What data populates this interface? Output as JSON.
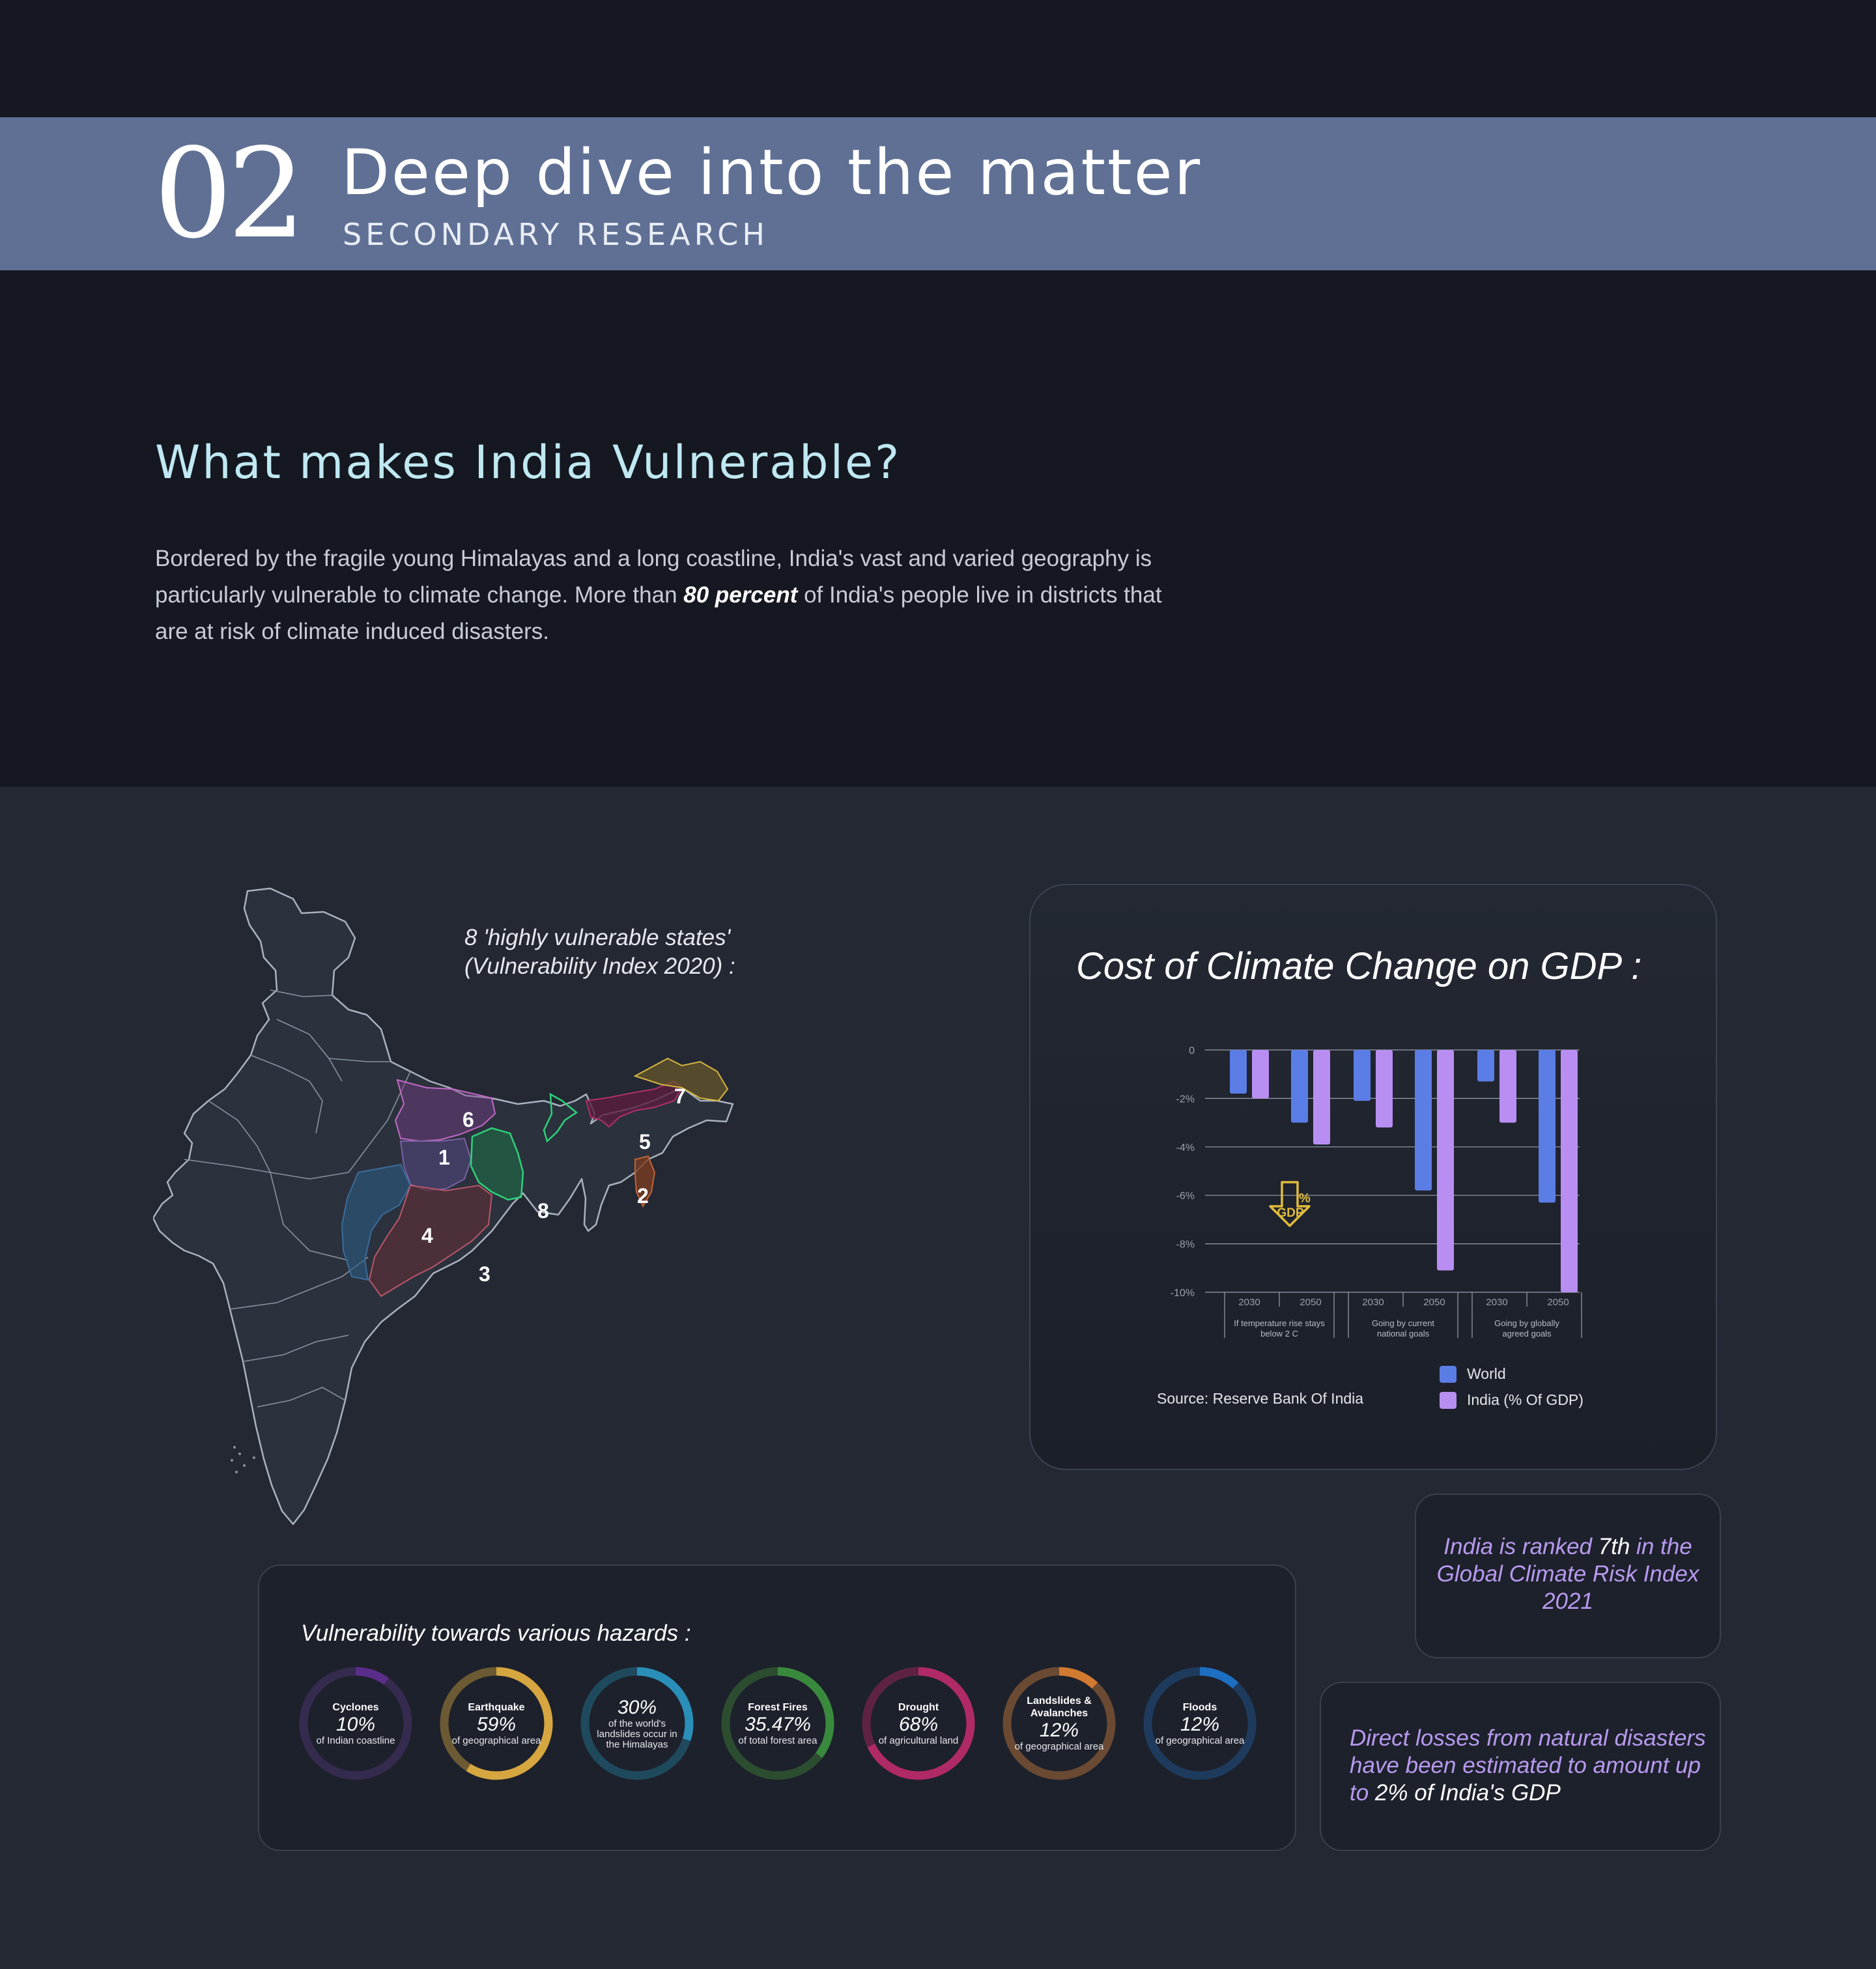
{
  "header": {
    "section_number": "02",
    "title": "Deep dive into the matter",
    "subtitle": "SECONDARY RESEARCH"
  },
  "intro": {
    "heading": "What makes India Vulnerable?",
    "text_before": "Bordered by the fragile young Himalayas and a long coastline, India's vast and varied geography is particularly vulnerable to climate change. More than ",
    "text_bold": "80 percent",
    "text_after": " of India's people live in districts that are at risk of climate induced disasters."
  },
  "map": {
    "caption_line1": "8 'highly vulnerable states'",
    "caption_line2": "(Vulnerability Index 2020) :",
    "states": [
      {
        "number": "1",
        "color": "#7b5fa6"
      },
      {
        "number": "2",
        "color": "#c0643a"
      },
      {
        "number": "3",
        "color": "#b8576a"
      },
      {
        "number": "4",
        "color": "#3b6d9a"
      },
      {
        "number": "5",
        "color": "#b0306a"
      },
      {
        "number": "6",
        "color": "#c06ac4"
      },
      {
        "number": "7",
        "color": "#d6b640"
      },
      {
        "number": "8",
        "color": "#2fd17a"
      }
    ]
  },
  "gdp": {
    "title": "Cost of Climate Change on GDP :",
    "source": "Source: Reserve Bank Of India",
    "icon_top": "%",
    "icon_label": "GDP",
    "legend": [
      {
        "label": "World",
        "color": "#5b7de6"
      },
      {
        "label": "India (% Of GDP)",
        "color": "#b98ef2"
      }
    ],
    "chart_data": {
      "type": "bar",
      "categories": [
        "2030",
        "2050",
        "2030",
        "2050",
        "2030",
        "2050"
      ],
      "groups": [
        "If temperature rise stays below 2 C",
        "Going by current national goals",
        "Going by globally agreed goals"
      ],
      "series": [
        {
          "name": "World",
          "values": [
            -1.8,
            -3.0,
            -2.1,
            -5.8,
            -1.3,
            -6.3
          ]
        },
        {
          "name": "India (% Of GDP)",
          "values": [
            -2.0,
            -3.9,
            -3.2,
            -9.1,
            -3.0,
            -10.0
          ]
        }
      ],
      "yticks": [
        "0",
        "-2%",
        "-4%",
        "-6%",
        "-8%",
        "-10%"
      ],
      "ylim": [
        -10,
        0
      ],
      "grid": true,
      "legend_position": "bottom-right"
    }
  },
  "rank": {
    "pre": "India is ranked ",
    "highlight": "7th",
    "post": " in the Global Climate Risk Index 2021"
  },
  "losses": {
    "pre": "Direct losses from natural disasters have been estimated to amount up to ",
    "highlight": "2% of India's GDP"
  },
  "hazards": {
    "title": "Vulnerability towards various hazards :",
    "items": [
      {
        "name": "Cyclones",
        "value": "10%",
        "desc": "of Indian coastline",
        "percent": 10,
        "color": "#5b2d8a",
        "track": "#352b4f"
      },
      {
        "name": "Earthquake",
        "value": "59%",
        "desc": "of geographical area",
        "percent": 59,
        "color": "#d6a640",
        "track": "#6b5a33"
      },
      {
        "name": "",
        "value": "30%",
        "desc": "of the world's landslides occur in the Himalayas",
        "percent": 30,
        "color": "#2a8fb8",
        "track": "#1f4a5e"
      },
      {
        "name": "Forest Fires",
        "value": "35.47%",
        "desc": "of total forest area",
        "percent": 35.47,
        "color": "#3a8a3e",
        "track": "#2c4d30"
      },
      {
        "name": "Drought",
        "value": "68%",
        "desc": "of agricultural land",
        "percent": 68,
        "color": "#b02a68",
        "track": "#5e2342"
      },
      {
        "name": "Landslides & Avalanches",
        "value": "12%",
        "desc": "of geographical area",
        "percent": 12,
        "color": "#d27a32",
        "track": "#6b4a33"
      },
      {
        "name": "Floods",
        "value": "12%",
        "desc": "of geographical area",
        "percent": 12,
        "color": "#1d6fc2",
        "track": "#1e3b5e"
      }
    ]
  }
}
